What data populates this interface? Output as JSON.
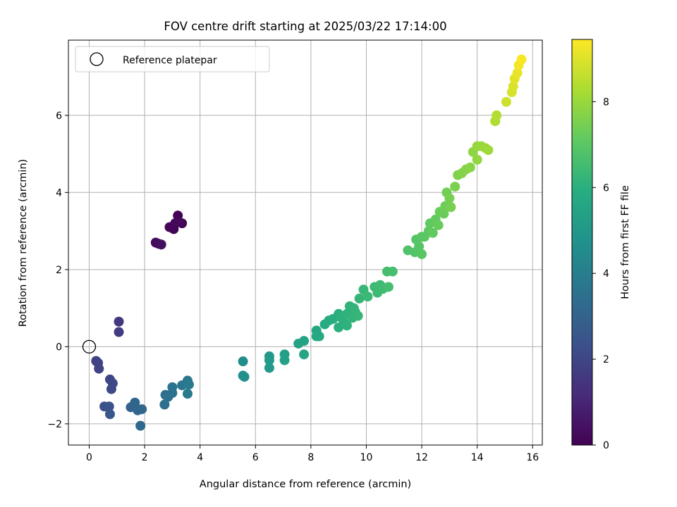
{
  "chart_data": {
    "type": "scatter",
    "title": "FOV centre drift starting at 2025/03/22 17:14:00",
    "xlabel": "Angular distance from reference (arcmin)",
    "ylabel": "Rotation from reference (arcmin)",
    "xlim": [
      -0.75,
      16.35
    ],
    "ylim": [
      -2.55,
      7.95
    ],
    "xticks": [
      0,
      2,
      4,
      6,
      8,
      10,
      12,
      14,
      16
    ],
    "yticks": [
      -2,
      0,
      2,
      4,
      6
    ],
    "grid": true,
    "legend": {
      "placement": "top-left",
      "entries": [
        "Reference platepar"
      ]
    },
    "reference_point": {
      "x": 0,
      "y": 0,
      "label": "Reference platepar"
    },
    "colorbar": {
      "label": "Hours from first FF file",
      "range": [
        0,
        9.45
      ],
      "ticks": [
        0,
        2,
        4,
        6,
        8
      ],
      "colormap": "viridis"
    },
    "points": [
      {
        "x": 2.4,
        "y": 2.7,
        "h": 0.25
      },
      {
        "x": 2.5,
        "y": 2.67,
        "h": 0.3
      },
      {
        "x": 2.6,
        "y": 2.65,
        "h": 0.35
      },
      {
        "x": 2.9,
        "y": 3.1,
        "h": 0.1
      },
      {
        "x": 3.05,
        "y": 3.05,
        "h": 0.12
      },
      {
        "x": 3.1,
        "y": 3.2,
        "h": 0.15
      },
      {
        "x": 3.2,
        "y": 3.4,
        "h": 0.05
      },
      {
        "x": 3.35,
        "y": 3.2,
        "h": 0.1
      },
      {
        "x": 3.2,
        "y": 3.25,
        "h": 0.2
      },
      {
        "x": 1.07,
        "y": 0.65,
        "h": 1.55
      },
      {
        "x": 1.07,
        "y": 0.38,
        "h": 1.65
      },
      {
        "x": 0.25,
        "y": -0.37,
        "h": 1.8
      },
      {
        "x": 0.32,
        "y": -0.42,
        "h": 1.85
      },
      {
        "x": 0.35,
        "y": -0.57,
        "h": 1.9
      },
      {
        "x": 0.75,
        "y": -0.85,
        "h": 2.0
      },
      {
        "x": 0.85,
        "y": -0.95,
        "h": 2.05
      },
      {
        "x": 0.8,
        "y": -1.1,
        "h": 2.1
      },
      {
        "x": 0.55,
        "y": -1.55,
        "h": 2.3
      },
      {
        "x": 0.72,
        "y": -1.55,
        "h": 2.4
      },
      {
        "x": 0.75,
        "y": -1.75,
        "h": 2.5
      },
      {
        "x": 1.5,
        "y": -1.57,
        "h": 3.0
      },
      {
        "x": 1.65,
        "y": -1.45,
        "h": 3.05
      },
      {
        "x": 1.75,
        "y": -1.65,
        "h": 3.1
      },
      {
        "x": 1.9,
        "y": -1.62,
        "h": 3.15
      },
      {
        "x": 1.85,
        "y": -2.05,
        "h": 3.2
      },
      {
        "x": 2.75,
        "y": -1.25,
        "h": 3.4
      },
      {
        "x": 2.72,
        "y": -1.5,
        "h": 3.45
      },
      {
        "x": 2.85,
        "y": -1.3,
        "h": 3.5
      },
      {
        "x": 3.0,
        "y": -1.2,
        "h": 3.55
      },
      {
        "x": 3.0,
        "y": -1.05,
        "h": 3.6
      },
      {
        "x": 3.35,
        "y": -1.0,
        "h": 3.7
      },
      {
        "x": 3.55,
        "y": -0.88,
        "h": 3.75
      },
      {
        "x": 3.6,
        "y": -0.98,
        "h": 3.8
      },
      {
        "x": 3.55,
        "y": -1.22,
        "h": 3.85
      },
      {
        "x": 5.55,
        "y": -0.38,
        "h": 4.6
      },
      {
        "x": 5.55,
        "y": -0.75,
        "h": 4.65
      },
      {
        "x": 5.6,
        "y": -0.78,
        "h": 4.7
      },
      {
        "x": 6.5,
        "y": -0.25,
        "h": 5.0
      },
      {
        "x": 6.5,
        "y": -0.35,
        "h": 5.05
      },
      {
        "x": 6.5,
        "y": -0.55,
        "h": 5.1
      },
      {
        "x": 7.05,
        "y": -0.2,
        "h": 5.3
      },
      {
        "x": 7.05,
        "y": -0.35,
        "h": 5.35
      },
      {
        "x": 7.55,
        "y": 0.08,
        "h": 5.45
      },
      {
        "x": 7.75,
        "y": 0.15,
        "h": 5.5
      },
      {
        "x": 7.75,
        "y": -0.2,
        "h": 5.55
      },
      {
        "x": 8.2,
        "y": 0.42,
        "h": 5.65
      },
      {
        "x": 8.2,
        "y": 0.27,
        "h": 5.7
      },
      {
        "x": 8.3,
        "y": 0.27,
        "h": 5.72
      },
      {
        "x": 8.5,
        "y": 0.58,
        "h": 5.8
      },
      {
        "x": 8.65,
        "y": 0.68,
        "h": 5.85
      },
      {
        "x": 8.8,
        "y": 0.72,
        "h": 5.9
      },
      {
        "x": 9.0,
        "y": 0.85,
        "h": 5.95
      },
      {
        "x": 9.0,
        "y": 0.5,
        "h": 6.0
      },
      {
        "x": 9.1,
        "y": 0.75,
        "h": 6.02
      },
      {
        "x": 9.2,
        "y": 0.62,
        "h": 6.05
      },
      {
        "x": 9.3,
        "y": 0.55,
        "h": 6.07
      },
      {
        "x": 9.3,
        "y": 0.85,
        "h": 6.1
      },
      {
        "x": 9.4,
        "y": 1.05,
        "h": 6.12
      },
      {
        "x": 9.5,
        "y": 0.75,
        "h": 6.15
      },
      {
        "x": 9.55,
        "y": 1.0,
        "h": 6.17
      },
      {
        "x": 9.6,
        "y": 0.9,
        "h": 6.2
      },
      {
        "x": 9.7,
        "y": 0.8,
        "h": 6.22
      },
      {
        "x": 9.75,
        "y": 1.25,
        "h": 6.25
      },
      {
        "x": 9.9,
        "y": 1.48,
        "h": 6.3
      },
      {
        "x": 10.05,
        "y": 1.3,
        "h": 6.35
      },
      {
        "x": 10.3,
        "y": 1.55,
        "h": 6.4
      },
      {
        "x": 10.4,
        "y": 1.4,
        "h": 6.42
      },
      {
        "x": 10.5,
        "y": 1.6,
        "h": 6.45
      },
      {
        "x": 10.6,
        "y": 1.5,
        "h": 6.47
      },
      {
        "x": 10.75,
        "y": 1.95,
        "h": 6.55
      },
      {
        "x": 10.8,
        "y": 1.55,
        "h": 6.57
      },
      {
        "x": 10.95,
        "y": 1.95,
        "h": 6.6
      },
      {
        "x": 11.5,
        "y": 2.5,
        "h": 6.8
      },
      {
        "x": 11.75,
        "y": 2.45,
        "h": 6.85
      },
      {
        "x": 11.8,
        "y": 2.78,
        "h": 6.9
      },
      {
        "x": 11.9,
        "y": 2.6,
        "h": 6.92
      },
      {
        "x": 12.0,
        "y": 2.85,
        "h": 6.95
      },
      {
        "x": 12.0,
        "y": 2.4,
        "h": 6.97
      },
      {
        "x": 12.1,
        "y": 2.85,
        "h": 7.0
      },
      {
        "x": 12.25,
        "y": 3.0,
        "h": 7.05
      },
      {
        "x": 12.3,
        "y": 3.2,
        "h": 7.1
      },
      {
        "x": 12.4,
        "y": 2.95,
        "h": 7.12
      },
      {
        "x": 12.5,
        "y": 3.3,
        "h": 7.15
      },
      {
        "x": 12.6,
        "y": 3.15,
        "h": 7.2
      },
      {
        "x": 12.65,
        "y": 3.5,
        "h": 7.25
      },
      {
        "x": 12.8,
        "y": 3.45,
        "h": 7.3
      },
      {
        "x": 12.85,
        "y": 3.65,
        "h": 7.32
      },
      {
        "x": 12.9,
        "y": 4.0,
        "h": 7.4
      },
      {
        "x": 13.0,
        "y": 3.85,
        "h": 7.45
      },
      {
        "x": 13.05,
        "y": 3.62,
        "h": 7.47
      },
      {
        "x": 13.2,
        "y": 4.15,
        "h": 7.55
      },
      {
        "x": 13.3,
        "y": 4.45,
        "h": 7.6
      },
      {
        "x": 13.45,
        "y": 4.5,
        "h": 7.65
      },
      {
        "x": 13.6,
        "y": 4.6,
        "h": 7.7
      },
      {
        "x": 13.75,
        "y": 4.65,
        "h": 7.75
      },
      {
        "x": 13.85,
        "y": 5.05,
        "h": 7.85
      },
      {
        "x": 14.0,
        "y": 4.85,
        "h": 7.9
      },
      {
        "x": 14.0,
        "y": 5.2,
        "h": 7.95
      },
      {
        "x": 14.15,
        "y": 5.2,
        "h": 8.0
      },
      {
        "x": 14.3,
        "y": 5.15,
        "h": 8.05
      },
      {
        "x": 14.4,
        "y": 5.1,
        "h": 8.1
      },
      {
        "x": 14.65,
        "y": 5.85,
        "h": 8.35
      },
      {
        "x": 14.7,
        "y": 6.0,
        "h": 8.4
      },
      {
        "x": 15.05,
        "y": 6.35,
        "h": 8.75
      },
      {
        "x": 15.25,
        "y": 6.6,
        "h": 8.9
      },
      {
        "x": 15.3,
        "y": 6.75,
        "h": 8.95
      },
      {
        "x": 15.35,
        "y": 6.95,
        "h": 9.05
      },
      {
        "x": 15.45,
        "y": 7.1,
        "h": 9.15
      },
      {
        "x": 15.5,
        "y": 7.3,
        "h": 9.3
      },
      {
        "x": 15.6,
        "y": 7.45,
        "h": 9.4
      }
    ]
  }
}
